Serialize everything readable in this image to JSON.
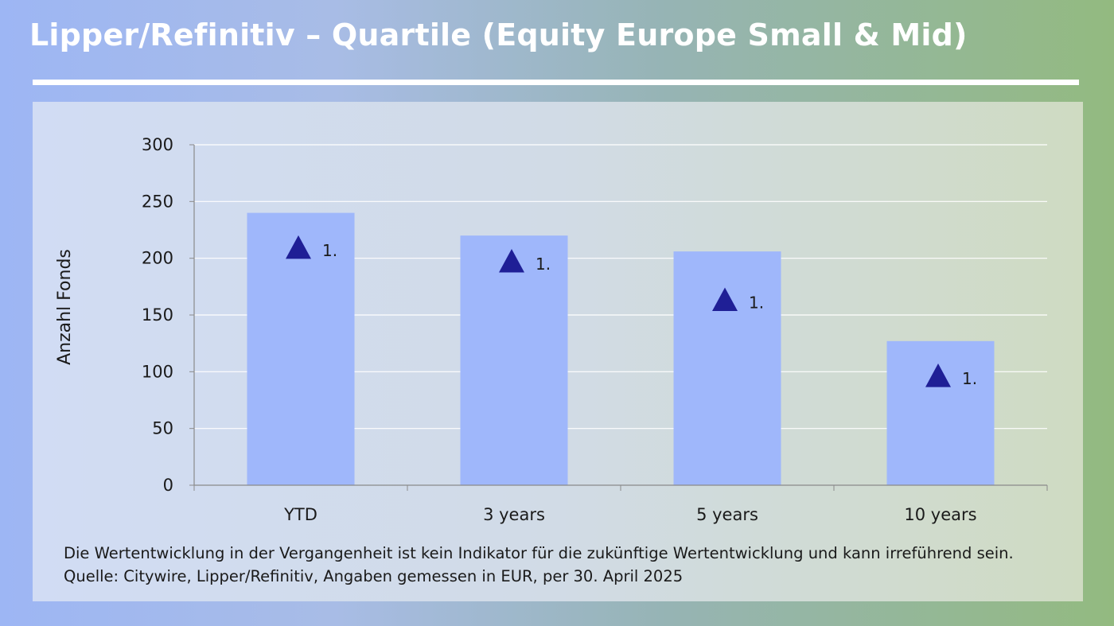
{
  "header": {
    "title": "Lipper/Refinitiv – Quartile (Equity Europe Small & Mid)"
  },
  "colors": {
    "bar": "#9fb7fb",
    "marker": "#1f1f96",
    "grid": "#ffffff",
    "axis": "#8a8a8a"
  },
  "chart_data": {
    "type": "bar",
    "categories": [
      "YTD",
      "3 years",
      "5 years",
      "10 years"
    ],
    "series": [
      {
        "values": [
          240,
          220,
          206,
          127
        ]
      }
    ],
    "markers": {
      "shape": "triangle",
      "values": [
        209,
        197,
        163,
        96
      ],
      "labels": [
        "1.",
        "1.",
        "1.",
        "1."
      ]
    },
    "ylabel": "Anzahl Fonds",
    "xlabel": "",
    "ylim": [
      0,
      300
    ],
    "yticks": [
      0,
      50,
      100,
      150,
      200,
      250,
      300
    ],
    "grid": true
  },
  "footnote": "Die Wertentwicklung in der Vergangenheit ist kein Indikator für die zukünftige Wertentwicklung und kann irreführend sein. Quelle: Citywire, Lipper/Refinitiv, Angaben gemessen in EUR, per 30. April 2025"
}
